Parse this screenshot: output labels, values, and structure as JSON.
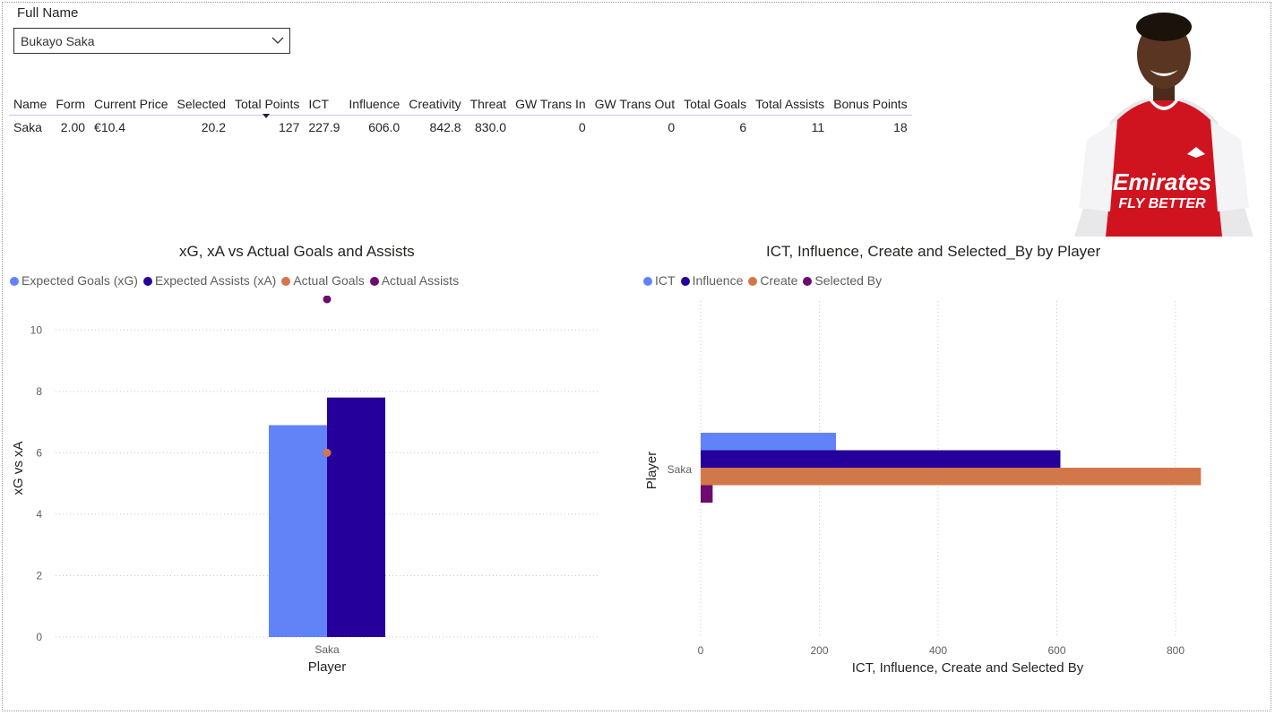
{
  "slicer": {
    "title": "Full Name",
    "value": "Bukayo Saka"
  },
  "table": {
    "columns": [
      "Name",
      "Form",
      "Current Price",
      "Selected",
      "Total Points",
      "ICT",
      "Influence",
      "Creativity",
      "Threat",
      "GW Trans In",
      "GW Trans Out",
      "Total Goals",
      "Total Assists",
      "Bonus Points"
    ],
    "rows": [
      [
        "Saka",
        "2.00",
        "€10.4",
        "20.2",
        "127",
        "227.9",
        "606.0",
        "842.8",
        "830.0",
        "0",
        "0",
        "6",
        "11",
        "18"
      ]
    ],
    "sorted_column": "Total Points"
  },
  "photo": {
    "name": "Bukayo Saka",
    "sponsor_line1": "Emirates",
    "sponsor_line2": "FLY BETTER"
  },
  "chart_data": [
    {
      "type": "bar",
      "title": "xG, xA vs Actual Goals and Assists",
      "xlabel": "Player",
      "ylabel": "xG vs xA",
      "categories": [
        "Saka"
      ],
      "ylim": [
        0,
        11
      ],
      "yticks": [
        0,
        2,
        4,
        6,
        8,
        10
      ],
      "legend_position": "top-left",
      "grid": true,
      "series": [
        {
          "name": "Expected Goals (xG)",
          "kind": "bar",
          "color": "#6283f7",
          "values": [
            6.9
          ]
        },
        {
          "name": "Expected Assists (xA)",
          "kind": "bar",
          "color": "#26009b",
          "values": [
            7.8
          ]
        },
        {
          "name": "Actual Goals",
          "kind": "point",
          "color": "#d2774a",
          "values": [
            6
          ]
        },
        {
          "name": "Actual Assists",
          "kind": "point",
          "color": "#6b0c6e",
          "values": [
            11
          ]
        }
      ]
    },
    {
      "type": "bar",
      "orientation": "horizontal",
      "title": "ICT, Influence, Create and Selected_By by Player",
      "xlabel": "ICT, Influence, Create and Selected By",
      "ylabel": "Player",
      "categories": [
        "Saka"
      ],
      "xlim": [
        0,
        850
      ],
      "xticks": [
        0,
        200,
        400,
        600,
        800
      ],
      "legend_position": "top-left",
      "grid": true,
      "series": [
        {
          "name": "ICT",
          "color": "#6283f7",
          "values": [
            227.9
          ]
        },
        {
          "name": "Influence",
          "color": "#26009b",
          "values": [
            606.0
          ]
        },
        {
          "name": "Create",
          "color": "#d2774a",
          "values": [
            842.8
          ]
        },
        {
          "name": "Selected By",
          "color": "#6b0c6e",
          "values": [
            20.2
          ]
        }
      ]
    }
  ]
}
